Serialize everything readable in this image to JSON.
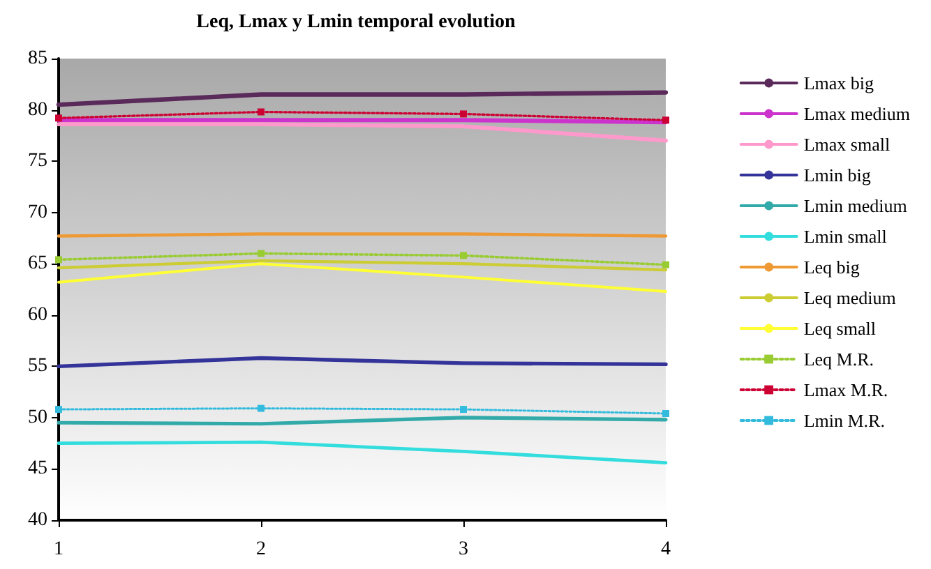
{
  "chart_data": {
    "type": "line",
    "title": "Leq, Lmax y Lmin temporal evolution",
    "x": [
      1,
      2,
      3,
      4
    ],
    "xlim": [
      1,
      4
    ],
    "xticks": [
      1,
      2,
      3,
      4
    ],
    "ylim": [
      40,
      85
    ],
    "yticks": [
      40,
      45,
      50,
      55,
      60,
      65,
      70,
      75,
      80,
      85
    ],
    "grid": false,
    "legend": "right",
    "marker": "none",
    "line_style": "solid",
    "series": [
      {
        "name": "Lmax big",
        "color": "#5a2a5a",
        "values": [
          80.5,
          81.5,
          81.5,
          81.7
        ]
      },
      {
        "name": "Lmax medium",
        "color": "#cc33cc",
        "values": [
          79,
          79,
          79,
          78.8
        ]
      },
      {
        "name": "Lmax small",
        "color": "#ff99cc",
        "values": [
          78.6,
          78.6,
          78.4,
          77
        ]
      },
      {
        "name": "Lmin big",
        "color": "#333399",
        "values": [
          55,
          55.8,
          55.3,
          55.2
        ]
      },
      {
        "name": "Lmin medium",
        "color": "#33aaaa",
        "values": [
          49.5,
          49.4,
          50,
          49.8
        ]
      },
      {
        "name": "Lmin small",
        "color": "#33dddd",
        "values": [
          47.5,
          47.6,
          46.7,
          45.6
        ]
      },
      {
        "name": "Leq big",
        "color": "#ee9933",
        "values": [
          67.7,
          67.9,
          67.9,
          67.7
        ]
      },
      {
        "name": "Leq medium",
        "color": "#cccc33",
        "values": [
          64.6,
          65.3,
          65,
          64.4
        ]
      },
      {
        "name": "Leq small",
        "color": "#ffff33",
        "values": [
          63.2,
          65,
          63.7,
          62.3
        ]
      },
      {
        "name": "Leq M.R.",
        "color": "#99cc33",
        "values": [
          65.4,
          66,
          65.8,
          64.9
        ],
        "marker": "square",
        "line_style": "dotted"
      },
      {
        "name": "Lmax M.R.",
        "color": "#cc0033",
        "values": [
          79.2,
          79.8,
          79.6,
          79
        ],
        "marker": "square",
        "line_style": "dotted"
      },
      {
        "name": "Lmin M.R.",
        "color": "#33bbdd",
        "values": [
          50.8,
          50.9,
          50.8,
          50.4
        ],
        "marker": "square",
        "line_style": "dotted"
      }
    ]
  }
}
